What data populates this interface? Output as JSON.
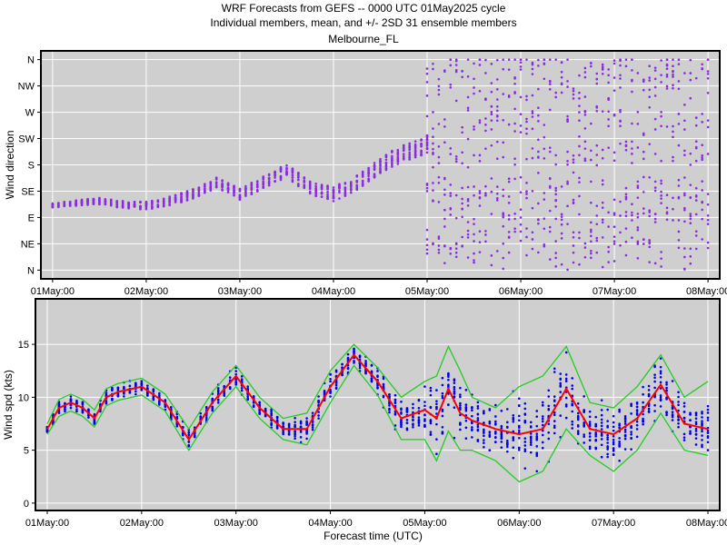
{
  "titles": {
    "line1": "WRF Forecasts from GEFS --  0000 UTC 01May2025  cycle",
    "line2": "Individual members, mean, and +/- 2SD    31 ensemble members",
    "line3": "Melbourne_FL"
  },
  "colors": {
    "panel": "#cfcfcf",
    "direction_points": "#8a2be2",
    "speed_points": "#0000ee",
    "mean_line": "#ff0000",
    "sd_lines": "#22cc22"
  },
  "chart_data": [
    {
      "type": "scatter",
      "ylabel": "Wind direction",
      "xlabel": "",
      "x_ticks": [
        "01May:00",
        "02May:00",
        "03May:00",
        "04May:00",
        "05May:00",
        "06May:00",
        "07May:00",
        "08May:00"
      ],
      "xlim_hours": [
        -3,
        171
      ],
      "y_categories": [
        "N",
        "NE",
        "E",
        "SE",
        "S",
        "SW",
        "W",
        "NW",
        "N"
      ],
      "ylim_deg": [
        -15,
        375
      ],
      "members": 31,
      "grid": true,
      "direction_centerline_deg": [
        [
          0,
          110
        ],
        [
          6,
          115
        ],
        [
          12,
          118
        ],
        [
          18,
          112
        ],
        [
          24,
          110
        ],
        [
          30,
          118
        ],
        [
          36,
          130
        ],
        [
          42,
          150
        ],
        [
          48,
          130
        ],
        [
          54,
          150
        ],
        [
          60,
          170
        ],
        [
          66,
          140
        ],
        [
          72,
          130
        ],
        [
          78,
          150
        ],
        [
          84,
          180
        ],
        [
          90,
          200
        ],
        [
          96,
          215
        ]
      ],
      "direction_scatter_after_96h": {
        "clusters_deg": [
          40,
          80,
          105,
          140,
          200,
          260,
          310,
          350
        ],
        "note_range_deg": [
          0,
          360
        ]
      }
    },
    {
      "type": "line",
      "ylabel": "Wind spd (kts)",
      "xlabel": "Forecast time (UTC)",
      "x_ticks": [
        "01May:00",
        "02May:00",
        "03May:00",
        "04May:00",
        "05May:00",
        "06May:00",
        "07May:00",
        "08May:00"
      ],
      "xlim_hours": [
        -3,
        171
      ],
      "y_ticks": [
        0,
        5,
        10,
        15
      ],
      "ylim": [
        -0.7,
        19.3
      ],
      "grid": true,
      "members": 31,
      "series": [
        {
          "role": "mean",
          "x": [
            0,
            3,
            6,
            9,
            12,
            15,
            18,
            24,
            30,
            36,
            42,
            48,
            54,
            60,
            66,
            72,
            78,
            84,
            90,
            96,
            99,
            102,
            105,
            108,
            114,
            120,
            126,
            132,
            138,
            144,
            150,
            156,
            162,
            168
          ],
          "values": [
            7,
            9,
            9.5,
            9,
            8,
            10,
            10.5,
            11,
            9.5,
            6,
            9.5,
            12,
            9,
            7,
            7,
            11,
            14,
            11.5,
            8,
            8.8,
            8,
            10.8,
            8.5,
            7.8,
            7,
            6.5,
            7,
            10.8,
            7,
            6.5,
            8,
            11.2,
            7.5,
            7
          ]
        },
        {
          "role": "upper_2sd",
          "x": [
            0,
            3,
            6,
            9,
            12,
            15,
            18,
            24,
            30,
            36,
            42,
            48,
            54,
            60,
            66,
            72,
            78,
            84,
            90,
            96,
            99,
            102,
            105,
            108,
            114,
            120,
            126,
            132,
            138,
            144,
            150,
            156,
            162,
            168
          ],
          "values": [
            7.5,
            9.8,
            10.3,
            9.8,
            8.8,
            10.8,
            11.3,
            11.8,
            10.3,
            7,
            10.5,
            13,
            10,
            8,
            8.5,
            12.5,
            15,
            12.8,
            10,
            11.5,
            12,
            14.8,
            12.5,
            10,
            9,
            11,
            12,
            14.8,
            9.5,
            9,
            11,
            14,
            10,
            11.5
          ]
        },
        {
          "role": "lower_2sd",
          "x": [
            0,
            3,
            6,
            9,
            12,
            15,
            18,
            24,
            30,
            36,
            42,
            48,
            54,
            60,
            66,
            72,
            78,
            84,
            90,
            96,
            99,
            102,
            105,
            108,
            114,
            120,
            126,
            132,
            138,
            144,
            150,
            156,
            162,
            168
          ],
          "values": [
            6.5,
            8.2,
            8.7,
            8.2,
            7.2,
            9.2,
            9.7,
            10.2,
            8.7,
            5,
            8.5,
            11,
            8,
            6,
            5.5,
            9.5,
            13,
            10.2,
            6,
            6,
            4,
            6.8,
            5,
            5,
            4,
            2,
            3,
            7,
            4.5,
            3,
            5,
            8.5,
            5,
            4.5
          ]
        }
      ]
    }
  ]
}
